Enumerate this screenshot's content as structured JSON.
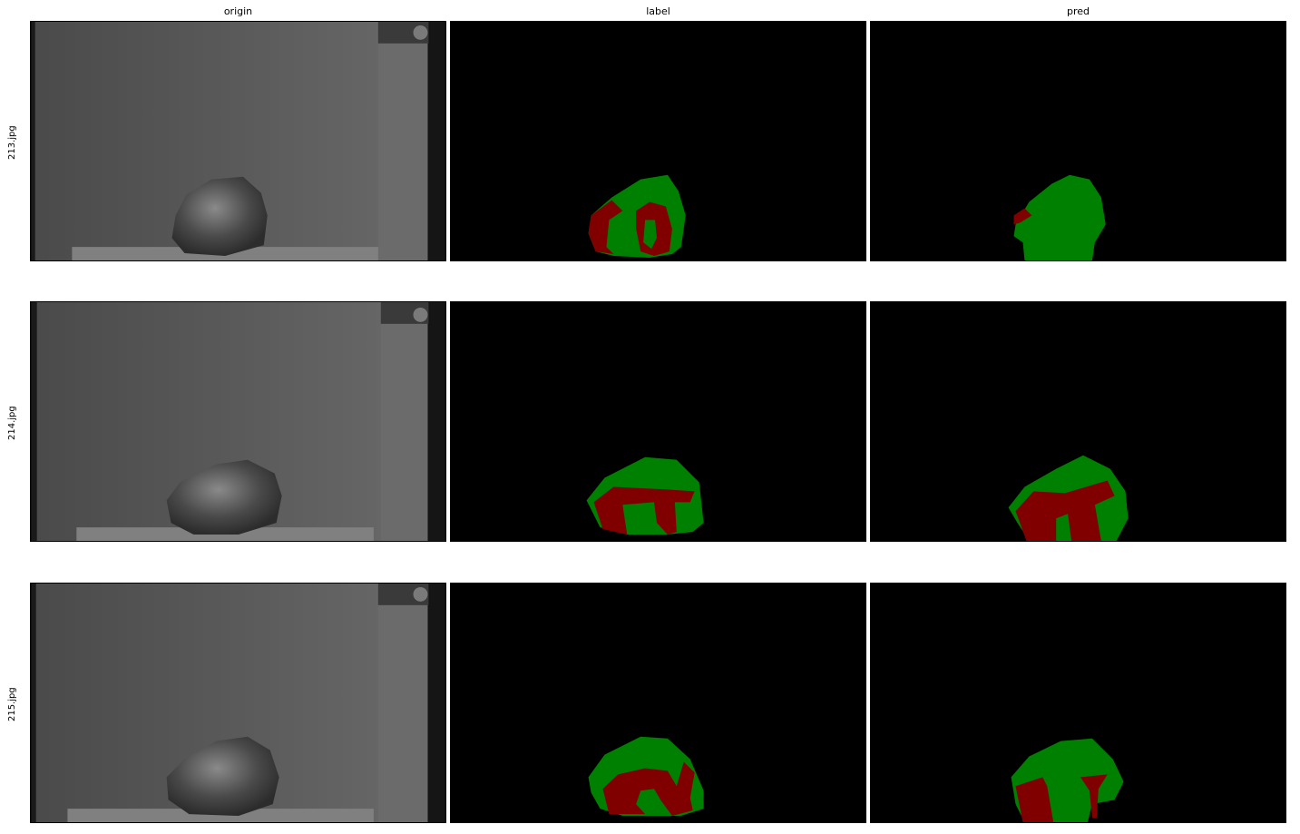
{
  "columns": [
    "origin",
    "label",
    "pred"
  ],
  "rows": [
    {
      "name": "213.jpg"
    },
    {
      "name": "214.jpg"
    },
    {
      "name": "215.jpg"
    }
  ],
  "colors": {
    "background": "#000000",
    "class_green": "#008000",
    "class_red": "#800000",
    "photo_bg": "#5c5c5c"
  }
}
